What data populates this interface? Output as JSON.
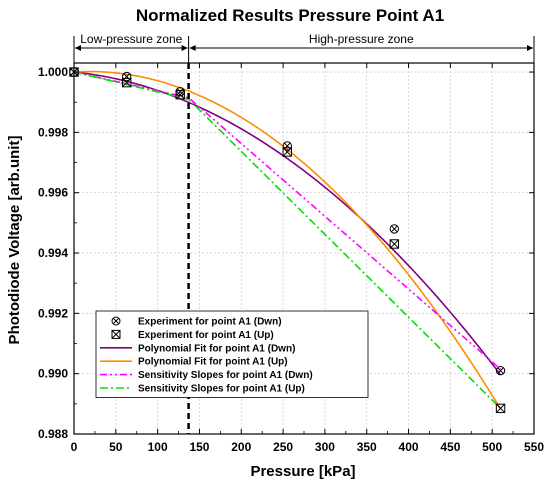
{
  "chart_data": {
    "type": "line",
    "title": "Normalized Results Pressure Point A1",
    "xlabel": "Pressure [kPa]",
    "ylabel": "Photodiode Voltage [arb.unit]",
    "xlim": [
      0,
      550
    ],
    "ylim": [
      0.988,
      1.0003
    ],
    "xticks": [
      0,
      50,
      100,
      150,
      200,
      250,
      300,
      350,
      400,
      450,
      500,
      550
    ],
    "yticks": [
      0.988,
      0.99,
      0.992,
      0.994,
      0.996,
      0.998,
      1.0
    ],
    "ytick_labels": [
      "0.988",
      "0.990",
      "0.992",
      "0.994",
      "0.996",
      "0.998",
      "1.000"
    ],
    "grid": true,
    "legend_position": "bottom-left",
    "zone_boundary_x": 137,
    "zones": [
      {
        "label": "Low-pressure zone",
        "from": 0,
        "to": 137
      },
      {
        "label": "High-pressure zone",
        "from": 137,
        "to": 550
      }
    ],
    "series": [
      {
        "name": "Experiment for point A1 (Dwn)",
        "kind": "scatter",
        "marker": "circle-x",
        "color": "#000000",
        "x": [
          0,
          63,
          127,
          255,
          383,
          510
        ],
        "y": [
          1.0,
          0.99985,
          0.99935,
          0.99755,
          0.9948,
          0.9901
        ]
      },
      {
        "name": "Experiment for point A1 (Up)",
        "kind": "scatter",
        "marker": "square-x",
        "color": "#000000",
        "x": [
          0,
          63,
          127,
          255,
          383,
          510
        ],
        "y": [
          1.0,
          0.99965,
          0.99925,
          0.99735,
          0.9943,
          0.98885
        ]
      },
      {
        "name": "Polynomial Fit for point A1 (Dwn)",
        "kind": "poly",
        "color": "#800080",
        "dash": "",
        "coef": [
          1.0,
          -2.8e-06,
          -3.31e-08
        ],
        "x_range": [
          0,
          510
        ]
      },
      {
        "name": "Polynomial Fit for point A1 (Up)",
        "kind": "poly",
        "color": "#ff8c00",
        "dash": "",
        "coef": [
          1.0,
          1.76e-06,
          -4.64e-08
        ],
        "x_range": [
          0,
          510
        ]
      },
      {
        "name": "Sensitivity Slopes for point A1 (Dwn)",
        "kind": "line",
        "color": "#ff00ff",
        "dash": "7,3,2,3,2,3",
        "x": [
          0,
          137,
          510
        ],
        "y": [
          1.0,
          0.99915,
          0.99015
        ]
      },
      {
        "name": "Sensitivity Slopes for point A1 (Up)",
        "kind": "line",
        "color": "#00e000",
        "dash": "8,3,2,3",
        "x": [
          0,
          137,
          510
        ],
        "y": [
          1.0,
          0.9991,
          0.98885
        ]
      }
    ]
  }
}
